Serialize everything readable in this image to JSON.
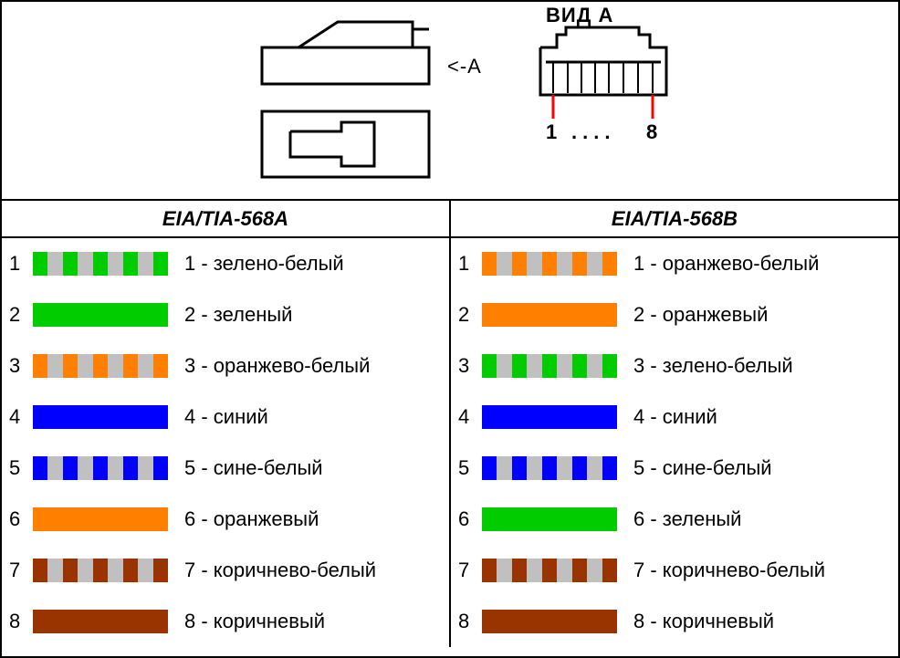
{
  "diagram": {
    "title_top": "ВИД A",
    "arrow_label": "<-A",
    "pin_left": "1",
    "pin_dots": "....",
    "pin_right": "8",
    "stroke": "#000000",
    "pin_line_color": "#ff0000"
  },
  "palette": {
    "green": "#00cc00",
    "orange": "#ff7f00",
    "blue": "#0000ff",
    "brown": "#993300",
    "stripe": "#c0c0c0"
  },
  "standards": [
    {
      "header": "EIA/TIA-568A",
      "wires": [
        {
          "n": 1,
          "label": "1 - зелено-белый",
          "striped": true,
          "color": "green"
        },
        {
          "n": 2,
          "label": "2 - зеленый",
          "striped": false,
          "color": "green"
        },
        {
          "n": 3,
          "label": "3 - оранжево-белый",
          "striped": true,
          "color": "orange"
        },
        {
          "n": 4,
          "label": "4 - синий",
          "striped": false,
          "color": "blue"
        },
        {
          "n": 5,
          "label": "5 - сине-белый",
          "striped": true,
          "color": "blue"
        },
        {
          "n": 6,
          "label": "6 - оранжевый",
          "striped": false,
          "color": "orange"
        },
        {
          "n": 7,
          "label": "7 - коричнево-белый",
          "striped": true,
          "color": "brown"
        },
        {
          "n": 8,
          "label": "8 - коричневый",
          "striped": false,
          "color": "brown"
        }
      ]
    },
    {
      "header": "EIA/TIA-568B",
      "wires": [
        {
          "n": 1,
          "label": "1 - оранжево-белый",
          "striped": true,
          "color": "orange"
        },
        {
          "n": 2,
          "label": "2 - оранжевый",
          "striped": false,
          "color": "orange"
        },
        {
          "n": 3,
          "label": "3 - зелено-белый",
          "striped": true,
          "color": "green"
        },
        {
          "n": 4,
          "label": "4 - синий",
          "striped": false,
          "color": "blue"
        },
        {
          "n": 5,
          "label": "5 - сине-белый",
          "striped": true,
          "color": "blue"
        },
        {
          "n": 6,
          "label": "6 - зеленый",
          "striped": false,
          "color": "green"
        },
        {
          "n": 7,
          "label": "7 - коричнево-белый",
          "striped": true,
          "color": "brown"
        },
        {
          "n": 8,
          "label": "8 - коричневый",
          "striped": false,
          "color": "brown"
        }
      ]
    }
  ]
}
